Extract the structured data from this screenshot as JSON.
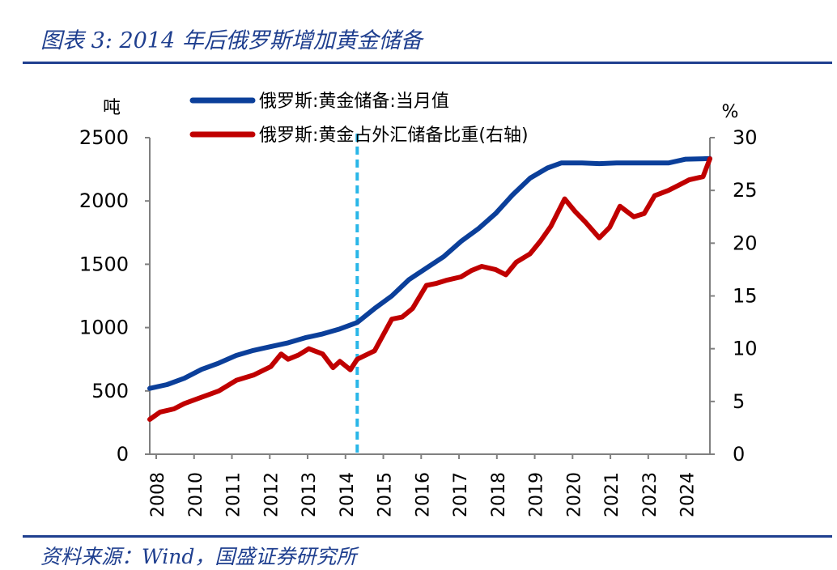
{
  "figure": {
    "title": "图表 3:  2014 年后俄罗斯增加黄金储备",
    "source": "资料来源：Wind，国盛证券研究所"
  },
  "colors": {
    "series_reserve": "#0b3f9a",
    "series_share": "#c00000",
    "marker_line": "#29b6e8",
    "rule": "#1f3f8f",
    "axis": "#808080"
  },
  "chart_data": {
    "type": "line",
    "title": "",
    "xlabel": "",
    "ylabel_left": "吨",
    "ylabel_right": "%",
    "x_ticks": [
      "2008",
      "2010",
      "2011",
      "2012",
      "2013",
      "2014",
      "2015",
      "2016",
      "2017",
      "2018",
      "2019",
      "2020",
      "2021",
      "2023",
      "2024"
    ],
    "x_range": [
      2008.0,
      2024.2
    ],
    "ylim_left": [
      0,
      2500
    ],
    "ylim_right": [
      0,
      30
    ],
    "yticks_left": [
      "0",
      "500",
      "1000",
      "1500",
      "2000",
      "2500"
    ],
    "yticks_right": [
      "0",
      "5",
      "10",
      "15",
      "20",
      "25",
      "30"
    ],
    "legend_position": "top-center",
    "grid": false,
    "annotation_vline_x": 2014.0,
    "series": [
      {
        "name": "俄罗斯:黄金储备:当月值",
        "axis": "left",
        "points": [
          [
            2008.0,
            520
          ],
          [
            2008.5,
            550
          ],
          [
            2009.0,
            600
          ],
          [
            2009.5,
            670
          ],
          [
            2010.0,
            720
          ],
          [
            2010.5,
            780
          ],
          [
            2011.0,
            820
          ],
          [
            2011.5,
            850
          ],
          [
            2012.0,
            880
          ],
          [
            2012.5,
            920
          ],
          [
            2013.0,
            950
          ],
          [
            2013.5,
            990
          ],
          [
            2014.0,
            1040
          ],
          [
            2014.5,
            1150
          ],
          [
            2015.0,
            1250
          ],
          [
            2015.5,
            1380
          ],
          [
            2016.0,
            1470
          ],
          [
            2016.5,
            1560
          ],
          [
            2017.0,
            1680
          ],
          [
            2017.5,
            1780
          ],
          [
            2018.0,
            1900
          ],
          [
            2018.5,
            2050
          ],
          [
            2019.0,
            2180
          ],
          [
            2019.5,
            2260
          ],
          [
            2019.9,
            2300
          ],
          [
            2020.5,
            2300
          ],
          [
            2021.0,
            2295
          ],
          [
            2021.5,
            2300
          ],
          [
            2022.0,
            2300
          ],
          [
            2022.5,
            2300
          ],
          [
            2023.0,
            2300
          ],
          [
            2023.5,
            2330
          ],
          [
            2024.0,
            2333
          ],
          [
            2024.2,
            2335
          ]
        ]
      },
      {
        "name": "俄罗斯:黄金占外汇储备比重(右轴)",
        "axis": "right",
        "points": [
          [
            2008.0,
            3.3
          ],
          [
            2008.3,
            4.0
          ],
          [
            2008.7,
            4.3
          ],
          [
            2009.0,
            4.8
          ],
          [
            2009.5,
            5.4
          ],
          [
            2010.0,
            6.0
          ],
          [
            2010.5,
            7.0
          ],
          [
            2011.0,
            7.5
          ],
          [
            2011.5,
            8.3
          ],
          [
            2011.8,
            9.5
          ],
          [
            2012.0,
            9.0
          ],
          [
            2012.3,
            9.4
          ],
          [
            2012.6,
            10.0
          ],
          [
            2013.0,
            9.5
          ],
          [
            2013.3,
            8.2
          ],
          [
            2013.5,
            8.8
          ],
          [
            2013.8,
            8.0
          ],
          [
            2014.0,
            9.0
          ],
          [
            2014.5,
            9.8
          ],
          [
            2015.0,
            12.8
          ],
          [
            2015.3,
            13.0
          ],
          [
            2015.6,
            13.8
          ],
          [
            2016.0,
            16.0
          ],
          [
            2016.3,
            16.2
          ],
          [
            2016.6,
            16.5
          ],
          [
            2017.0,
            16.8
          ],
          [
            2017.3,
            17.4
          ],
          [
            2017.6,
            17.8
          ],
          [
            2018.0,
            17.5
          ],
          [
            2018.3,
            17.0
          ],
          [
            2018.6,
            18.2
          ],
          [
            2019.0,
            19.0
          ],
          [
            2019.3,
            20.2
          ],
          [
            2019.6,
            21.6
          ],
          [
            2020.0,
            24.2
          ],
          [
            2020.3,
            23.0
          ],
          [
            2020.6,
            22.0
          ],
          [
            2021.0,
            20.5
          ],
          [
            2021.3,
            21.5
          ],
          [
            2021.6,
            23.5
          ],
          [
            2022.0,
            22.5
          ],
          [
            2022.3,
            22.8
          ],
          [
            2022.6,
            24.5
          ],
          [
            2023.0,
            25.0
          ],
          [
            2023.3,
            25.5
          ],
          [
            2023.6,
            26.0
          ],
          [
            2024.0,
            26.3
          ],
          [
            2024.2,
            28.0
          ]
        ]
      }
    ]
  }
}
